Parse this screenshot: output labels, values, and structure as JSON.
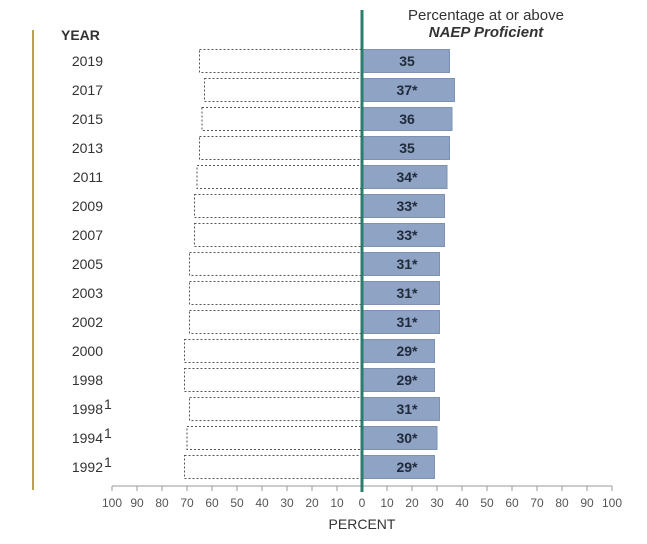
{
  "chart_data": {
    "type": "bar",
    "year_header": "YEAR",
    "header_line1": "Percentage at or above",
    "header_line2": "NAEP Proficient",
    "xlabel": "PERCENT",
    "xticks": [
      "100",
      "90",
      "80",
      "70",
      "60",
      "50",
      "40",
      "30",
      "20",
      "10",
      "0",
      "10",
      "20",
      "30",
      "40",
      "50",
      "60",
      "70",
      "80",
      "90",
      "100"
    ],
    "xlim_left": [
      100,
      0
    ],
    "xlim_right": [
      0,
      100
    ],
    "colors": {
      "bar_fill": "#8fa3c4",
      "bar_stroke": "#7d91b3",
      "axis_line": "#2e7d6c",
      "year_rule": "#b8a34a",
      "below_outline": "#555555"
    },
    "rows": [
      {
        "year": "2019",
        "sup": "",
        "value": 35,
        "label": "35",
        "below": 65
      },
      {
        "year": "2017",
        "sup": "",
        "value": 37,
        "label": "37*",
        "below": 63
      },
      {
        "year": "2015",
        "sup": "",
        "value": 36,
        "label": "36",
        "below": 64
      },
      {
        "year": "2013",
        "sup": "",
        "value": 35,
        "label": "35",
        "below": 65
      },
      {
        "year": "2011",
        "sup": "",
        "value": 34,
        "label": "34*",
        "below": 66
      },
      {
        "year": "2009",
        "sup": "",
        "value": 33,
        "label": "33*",
        "below": 67
      },
      {
        "year": "2007",
        "sup": "",
        "value": 33,
        "label": "33*",
        "below": 67
      },
      {
        "year": "2005",
        "sup": "",
        "value": 31,
        "label": "31*",
        "below": 69
      },
      {
        "year": "2003",
        "sup": "",
        "value": 31,
        "label": "31*",
        "below": 69
      },
      {
        "year": "2002",
        "sup": "",
        "value": 31,
        "label": "31*",
        "below": 69
      },
      {
        "year": "2000",
        "sup": "",
        "value": 29,
        "label": "29*",
        "below": 71
      },
      {
        "year": "1998",
        "sup": "",
        "value": 29,
        "label": "29*",
        "below": 71
      },
      {
        "year": "1998",
        "sup": "1",
        "value": 31,
        "label": "31*",
        "below": 69
      },
      {
        "year": "1994",
        "sup": "1",
        "value": 30,
        "label": "30*",
        "below": 70
      },
      {
        "year": "1992",
        "sup": "1",
        "value": 29,
        "label": "29*",
        "below": 71
      }
    ]
  }
}
